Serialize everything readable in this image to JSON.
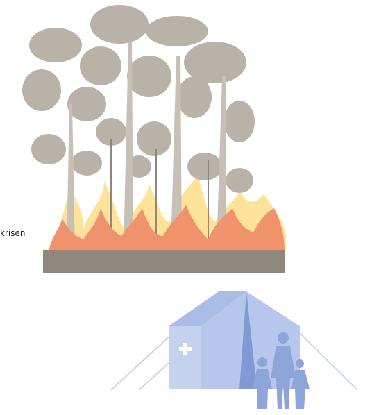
{
  "caption": {
    "text": "krisen"
  }
}
